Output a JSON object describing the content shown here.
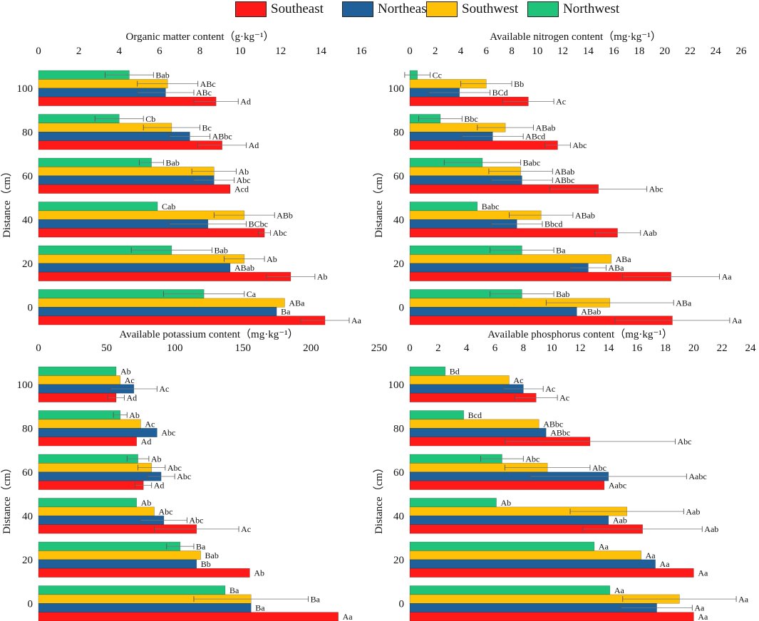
{
  "legend": [
    {
      "name": "Southeast",
      "color": "#ff1a1a"
    },
    {
      "name": "Northeast",
      "color": "#1f5f9a"
    },
    {
      "name": "Southwest",
      "color": "#ffc107"
    },
    {
      "name": "Northwest",
      "color": "#1fc47a"
    }
  ],
  "chart_data": [
    {
      "id": "organic",
      "type": "bar",
      "orientation": "horizontal",
      "title": "Organic matter content（g·kg⁻¹）",
      "ylabel": "Distance（cm）",
      "xlim": [
        0,
        16
      ],
      "xticks": [
        "0",
        "2",
        "4",
        "6",
        "8",
        "10",
        "12",
        "14",
        "16"
      ],
      "categories": [
        "100",
        "80",
        "60",
        "40",
        "20",
        "0"
      ],
      "series": [
        {
          "name": "Northwest",
          "values": [
            4.5,
            4.0,
            5.6,
            5.9,
            6.6,
            8.2
          ],
          "errors": [
            1.2,
            1.2,
            0.6,
            0,
            2.0,
            2.0
          ],
          "labels": [
            "Bab",
            "Cb",
            "Bab",
            "Cab",
            "Bab",
            "Ca"
          ]
        },
        {
          "name": "Southwest",
          "values": [
            6.4,
            6.6,
            8.7,
            10.2,
            10.2,
            12.2
          ],
          "errors": [
            1.5,
            1.4,
            1.1,
            1.5,
            1.0,
            0
          ],
          "labels": [
            "ABc",
            "Bc",
            "Ab",
            "ABb",
            "Ab",
            "ABa"
          ]
        },
        {
          "name": "Northeast",
          "values": [
            6.3,
            7.5,
            8.7,
            8.4,
            9.5,
            11.8
          ],
          "errors": [
            1.4,
            1.0,
            1.0,
            1.9,
            0,
            0
          ],
          "labels": [
            "ABc",
            "ABbc",
            "Abc",
            "BCbc",
            "ABab",
            "Ba"
          ]
        },
        {
          "name": "Southeast",
          "values": [
            8.8,
            9.1,
            9.5,
            11.2,
            12.5,
            14.2
          ],
          "errors": [
            1.1,
            1.2,
            0,
            0.3,
            1.2,
            1.2
          ],
          "labels": [
            "Ad",
            "Ad",
            "Acd",
            "Abc",
            "Ab",
            "Aa"
          ]
        }
      ]
    },
    {
      "id": "nitrogen",
      "type": "bar",
      "orientation": "horizontal",
      "title": "Available nitrogen content（mg·kg⁻¹）",
      "ylabel": "Distance（cm）",
      "xlim": [
        0,
        26
      ],
      "xticks": [
        "0",
        "2",
        "4",
        "6",
        "8",
        "10",
        "12",
        "14",
        "16",
        "18",
        "20",
        "22",
        "24",
        "26"
      ],
      "categories": [
        "100",
        "80",
        "60",
        "40",
        "20",
        "0"
      ],
      "series": [
        {
          "name": "Northwest",
          "values": [
            0.6,
            2.4,
            5.7,
            5.3,
            8.8,
            8.8
          ],
          "errors": [
            1.0,
            1.7,
            3.0,
            0,
            2.5,
            2.5
          ],
          "labels": [
            "Cc",
            "Bbc",
            "Babc",
            "Babc",
            "Ba",
            "Bab"
          ]
        },
        {
          "name": "Southwest",
          "values": [
            6.0,
            7.5,
            8.7,
            10.3,
            15.8,
            15.7
          ],
          "errors": [
            2.0,
            2.2,
            2.5,
            2.5,
            0,
            5.0
          ],
          "labels": [
            "Bb",
            "ABab",
            "ABab",
            "ABab",
            "ABa",
            "ABa"
          ]
        },
        {
          "name": "Northeast",
          "values": [
            3.9,
            6.5,
            8.8,
            8.4,
            14.0,
            13.1
          ],
          "errors": [
            2.4,
            2.4,
            2.4,
            2.0,
            1.4,
            0
          ],
          "labels": [
            "BCd",
            "ABcd",
            "ABbc",
            "Bbcd",
            "ABa",
            "ABab"
          ]
        },
        {
          "name": "Southeast",
          "values": [
            9.3,
            11.6,
            14.8,
            16.3,
            20.5,
            20.6
          ],
          "errors": [
            2.0,
            1.0,
            3.8,
            1.8,
            3.8,
            4.5
          ],
          "labels": [
            "Ac",
            "Abc",
            "Abc",
            "Aab",
            "Aa",
            "Aa"
          ]
        }
      ]
    },
    {
      "id": "potassium",
      "type": "bar",
      "orientation": "horizontal",
      "title": "Available potassium content（mg·kg⁻¹）",
      "ylabel": "Distance（cm）",
      "xlim": [
        0,
        250
      ],
      "xticks": [
        "0",
        "50",
        "100",
        "150",
        "200",
        "250"
      ],
      "categories": [
        "100",
        "80",
        "60",
        "40",
        "20",
        "0"
      ],
      "series": [
        {
          "name": "Northwest",
          "values": [
            57,
            60,
            73,
            72,
            104,
            137
          ],
          "errors": [
            0,
            5,
            8,
            0,
            10,
            0
          ],
          "labels": [
            "Ab",
            "Ab",
            "Ab",
            "Ab",
            "Ba",
            "Ba"
          ]
        },
        {
          "name": "Southwest",
          "values": [
            60,
            75,
            83,
            85,
            119,
            156
          ],
          "errors": [
            0,
            0,
            10,
            0,
            0,
            42
          ],
          "labels": [
            "Ac",
            "Ac",
            "Abc",
            "Abc",
            "Bab",
            "Ba"
          ]
        },
        {
          "name": "Northeast",
          "values": [
            70,
            87,
            90,
            92,
            116,
            156
          ],
          "errors": [
            17,
            0,
            10,
            17,
            0,
            0
          ],
          "labels": [
            "Ac",
            "Abc",
            "Abc",
            "Abc",
            "Bb",
            "Ba"
          ]
        },
        {
          "name": "Southeast",
          "values": [
            57,
            72,
            77,
            116,
            155,
            220
          ],
          "errors": [
            6,
            0,
            6,
            31,
            0,
            0
          ],
          "labels": [
            "Ad",
            "Ad",
            "Ad",
            "Ac",
            "Ab",
            "Aa"
          ]
        }
      ]
    },
    {
      "id": "phosphorus",
      "type": "bar",
      "orientation": "horizontal",
      "title": "Available phosphorus content（mg·kg⁻¹）",
      "ylabel": "Distance（cm）",
      "xlim": [
        0,
        24
      ],
      "xticks": [
        "0",
        "2",
        "4",
        "6",
        "8",
        "10",
        "12",
        "14",
        "16",
        "18",
        "20",
        "22",
        "24"
      ],
      "categories": [
        "100",
        "80",
        "60",
        "40",
        "20",
        "0"
      ],
      "series": [
        {
          "name": "Northwest",
          "values": [
            2.5,
            3.8,
            6.5,
            6.1,
            13.0,
            14.1
          ],
          "errors": [
            0,
            0,
            1.5,
            0,
            0,
            0
          ],
          "labels": [
            "Bd",
            "Bcd",
            "Abc",
            "Ab",
            "Aa",
            "Aa"
          ]
        },
        {
          "name": "Southwest",
          "values": [
            7.0,
            9.1,
            9.7,
            15.3,
            16.3,
            19.0
          ],
          "errors": [
            0,
            0,
            3.0,
            4.0,
            0,
            4.0
          ],
          "labels": [
            "Ac",
            "ABbc",
            "Abc",
            "Aab",
            "Aa",
            "Aa"
          ]
        },
        {
          "name": "Northeast",
          "values": [
            8.0,
            9.6,
            14.0,
            14.0,
            17.3,
            17.4
          ],
          "errors": [
            1.4,
            0,
            5.5,
            0,
            0,
            2.5
          ],
          "labels": [
            "Ac",
            "ABbc",
            "Aabc",
            "Aab",
            "Aa",
            "Aa"
          ]
        },
        {
          "name": "Southeast",
          "values": [
            8.9,
            12.7,
            13.7,
            16.4,
            20.0,
            20.0
          ],
          "errors": [
            1.5,
            6.0,
            0,
            4.2,
            0,
            0
          ],
          "labels": [
            "Ac",
            "Abc",
            "Aabc",
            "Aab",
            "Aa",
            "Aa"
          ]
        }
      ]
    }
  ]
}
